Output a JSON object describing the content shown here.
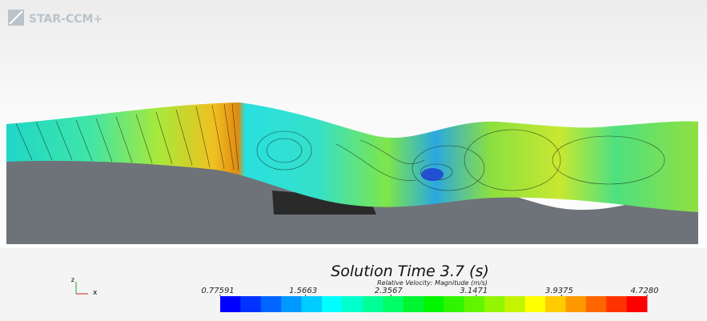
{
  "logo": "STAR-CCM+",
  "scene": {
    "title": "Solution Time 3.7 (s)",
    "colorbar": {
      "label": "Relative Velocity: Magnitude (m/s)",
      "lim": [
        0.77591,
        4.728
      ],
      "ticks": [
        0.77591,
        1.5663,
        2.3567,
        3.1471,
        3.9375,
        {
          "value": 4.728,
          "label": "4.7280"
        }
      ]
    },
    "triad": {
      "z": "z",
      "x": "x"
    }
  }
}
